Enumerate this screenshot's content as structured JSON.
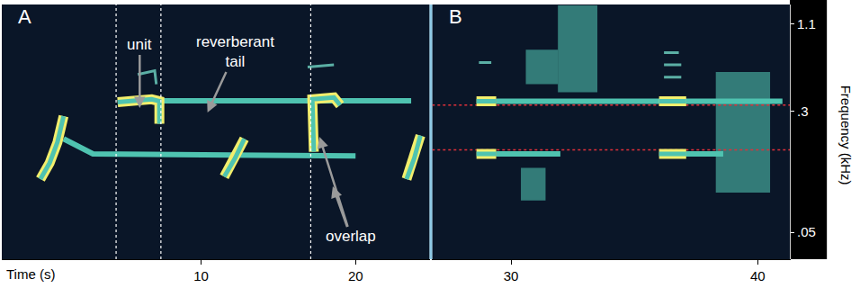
{
  "chart_data": {
    "type": "spectrogram",
    "x_label": "Time (s)",
    "y_label": "Frequency (kHz)",
    "log": "y",
    "ylim": [
      0.0335,
      1.47
    ],
    "yticks": [
      {
        "value": 0.05,
        "label": ".05"
      },
      {
        "value": 0.3,
        "label": ".3"
      },
      1.1
    ],
    "panels": [
      {
        "label": "A",
        "xlim": [
          -2.9,
          24.8
        ],
        "xticks": [
          10,
          20
        ],
        "tails": {
          "color": "#4fc3b0",
          "segments": [
            {
              "x": [
                1.1,
                3.0,
                20.0
              ],
              "y": [
                0.2,
                0.16,
                0.155
              ]
            },
            {
              "x": [
                7.3,
                23.6
              ],
              "y": [
                0.352,
                0.352
              ]
            }
          ]
        },
        "faint": {
          "color": "#6fd6c4",
          "segments": [
            {
              "x": [
                5.9,
                7.0,
                7.1
              ],
              "y": [
                0.52,
                0.55,
                0.45
              ]
            },
            {
              "x": [
                16.9,
                18.6
              ],
              "y": [
                0.58,
                0.6
              ]
            }
          ]
        },
        "units": {
          "color": "#f3ee6c",
          "segments": [
            {
              "x": [
                -0.4,
                0.2,
                0.7,
                1.1
              ],
              "y": [
                0.11,
                0.14,
                0.19,
                0.28
              ]
            },
            {
              "x": [
                4.6,
                6.8,
                7.3,
                7.3
              ],
              "y": [
                0.345,
                0.36,
                0.35,
                0.25
              ]
            },
            {
              "x": [
                11.5,
                12.2,
                12.8
              ],
              "y": [
                0.114,
                0.15,
                0.2
              ]
            },
            {
              "x": [
                17.3,
                17.2,
                18.6,
                19.0
              ],
              "y": [
                0.165,
                0.36,
                0.37,
                0.33
              ]
            },
            {
              "x": [
                23.3,
                23.8,
                24.2
              ],
              "y": [
                0.11,
                0.15,
                0.21
              ]
            }
          ]
        },
        "dividers": [
          4.5,
          7.4,
          17.1
        ],
        "annotations": [
          "unit",
          "reverberant tail",
          "overlap"
        ]
      },
      {
        "label": "B",
        "xlim": [
          26.8,
          41.3
        ],
        "xticks": [
          30,
          40
        ],
        "noise": {
          "color": "#4fbfae",
          "polygons": [
            {
              "x": [
                31.9,
                33.5,
                33.5,
                31.9,
                31.9
              ],
              "y": [
                0.4,
                0.4,
                1.45,
                1.45,
                0.4
              ]
            },
            {
              "x": [
                30.6,
                31.9,
                31.9,
                30.6,
                30.6
              ],
              "y": [
                0.45,
                0.45,
                0.75,
                0.75,
                0.45
              ]
            },
            {
              "x": [
                38.3,
                40.5,
                40.5,
                38.3,
                38.3
              ],
              "y": [
                0.09,
                0.09,
                0.54,
                0.54,
                0.09
              ]
            },
            {
              "x": [
                30.4,
                31.4,
                31.4,
                30.4,
                30.4
              ],
              "y": [
                0.08,
                0.08,
                0.13,
                0.13,
                0.08
              ]
            }
          ]
        },
        "tails": {
          "color": "#4fc3b0",
          "segments": [
            {
              "x": [
                29.4,
                41.0
              ],
              "y": [
                0.35,
                0.35
              ]
            },
            {
              "x": [
                29.4,
                32.0
              ],
              "y": [
                0.16,
                0.16
              ]
            },
            {
              "x": [
                37.1,
                38.6
              ],
              "y": [
                0.16,
                0.16
              ]
            }
          ]
        },
        "faint": {
          "color": "#6fd6c4",
          "segments": [
            {
              "x": [
                28.7,
                29.2
              ],
              "y": [
                0.62,
                0.62
              ]
            },
            {
              "x": [
                36.2,
                36.8
              ],
              "y": [
                0.72,
                0.72
              ]
            },
            {
              "x": [
                36.2,
                36.9
              ],
              "y": [
                0.6,
                0.6
              ]
            },
            {
              "x": [
                36.2,
                36.9
              ],
              "y": [
                0.5,
                0.5
              ]
            }
          ]
        },
        "units": {
          "color": "#f3ee6c",
          "segments": [
            {
              "x": [
                28.6,
                29.4
              ],
              "y": [
                0.35,
                0.35
              ]
            },
            {
              "x": [
                28.6,
                29.4
              ],
              "y": [
                0.16,
                0.16
              ]
            },
            {
              "x": [
                36.0,
                37.1
              ],
              "y": [
                0.35,
                0.35
              ]
            },
            {
              "x": [
                36.0,
                37.1
              ],
              "y": [
                0.16,
                0.16
              ]
            }
          ]
        },
        "reference_lines": [
          0.33,
          0.17
        ]
      }
    ]
  }
}
